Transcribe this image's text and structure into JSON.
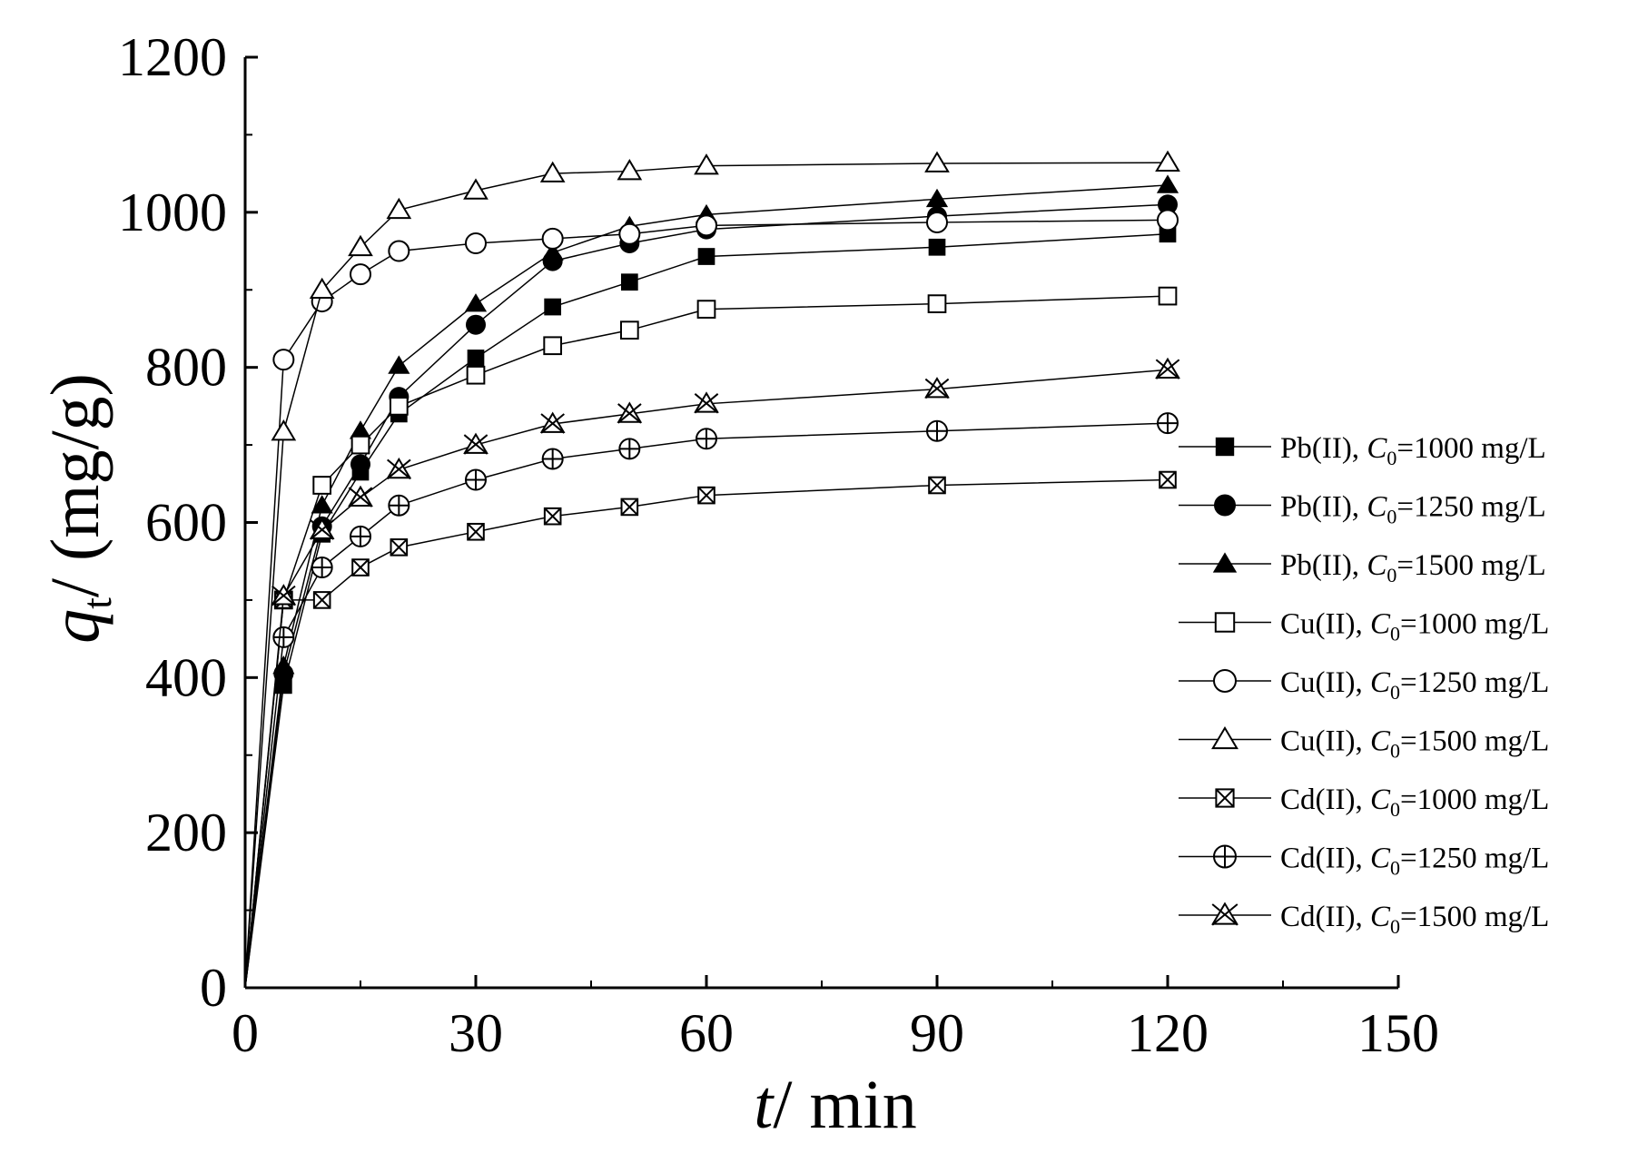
{
  "chart_data": {
    "type": "line",
    "title": "",
    "xlabel": {
      "italic": "t",
      "rest": "/ min"
    },
    "ylabel": {
      "italic": "q",
      "sub": "t",
      "rest": "/ (mg/g)"
    },
    "xlim": [
      0,
      150
    ],
    "ylim": [
      0,
      1200
    ],
    "xticks": [
      0,
      30,
      60,
      90,
      120,
      150
    ],
    "yticks": [
      0,
      200,
      400,
      600,
      800,
      1000,
      1200
    ],
    "xtick_labels": [
      "0",
      "30",
      "60",
      "90",
      "120",
      "150"
    ],
    "ytick_labels": [
      "0",
      "200",
      "400",
      "600",
      "800",
      "1000",
      "1200"
    ],
    "grid": false,
    "legend_position": "right",
    "x": [
      0,
      5,
      10,
      15,
      20,
      30,
      40,
      50,
      60,
      90,
      120
    ],
    "series": [
      {
        "metal": "Pb(II)",
        "c_sym": "C",
        "c_sub": "0",
        "conc": "=1000 mg/L",
        "marker": "square-filled",
        "values": [
          0,
          390,
          585,
          665,
          740,
          812,
          878,
          910,
          943,
          955,
          972
        ]
      },
      {
        "metal": "Pb(II)",
        "c_sym": "C",
        "c_sub": "0",
        "conc": "=1250 mg/L",
        "marker": "circle-filled",
        "values": [
          0,
          405,
          595,
          675,
          762,
          855,
          937,
          960,
          978,
          995,
          1010
        ]
      },
      {
        "metal": "Pb(II)",
        "c_sym": "C",
        "c_sub": "0",
        "conc": "=1500 mg/L",
        "marker": "triangle-filled",
        "values": [
          0,
          415,
          622,
          718,
          802,
          882,
          948,
          982,
          997,
          1017,
          1035
        ]
      },
      {
        "metal": "Cu(II)",
        "c_sym": "C",
        "c_sub": "0",
        "conc": "=1000 mg/L",
        "marker": "square-open",
        "values": [
          0,
          500,
          648,
          700,
          750,
          790,
          828,
          848,
          875,
          882,
          892
        ]
      },
      {
        "metal": "Cu(II)",
        "c_sym": "C",
        "c_sub": "0",
        "conc": "=1250 mg/L",
        "marker": "circle-open",
        "values": [
          0,
          810,
          885,
          920,
          950,
          960,
          966,
          972,
          983,
          987,
          990
        ]
      },
      {
        "metal": "Cu(II)",
        "c_sym": "C",
        "c_sub": "0",
        "conc": "=1500 mg/L",
        "marker": "triangle-open",
        "values": [
          0,
          717,
          900,
          955,
          1003,
          1028,
          1050,
          1053,
          1060,
          1063,
          1064
        ]
      },
      {
        "metal": "Cd(II)",
        "c_sym": "C",
        "c_sub": "0",
        "conc": "=1000 mg/L",
        "marker": "square-x",
        "values": [
          0,
          500,
          500,
          542,
          568,
          588,
          608,
          620,
          635,
          648,
          655
        ]
      },
      {
        "metal": "Cd(II)",
        "c_sym": "C",
        "c_sub": "0",
        "conc": "=1250 mg/L",
        "marker": "circle-plus",
        "values": [
          0,
          452,
          542,
          582,
          622,
          655,
          682,
          695,
          708,
          718,
          728
        ]
      },
      {
        "metal": "Cd(II)",
        "c_sym": "C",
        "c_sub": "0",
        "conc": "=1500 mg/L",
        "marker": "triangle-x",
        "values": [
          0,
          505,
          590,
          632,
          668,
          700,
          727,
          740,
          753,
          772,
          797
        ]
      }
    ]
  }
}
